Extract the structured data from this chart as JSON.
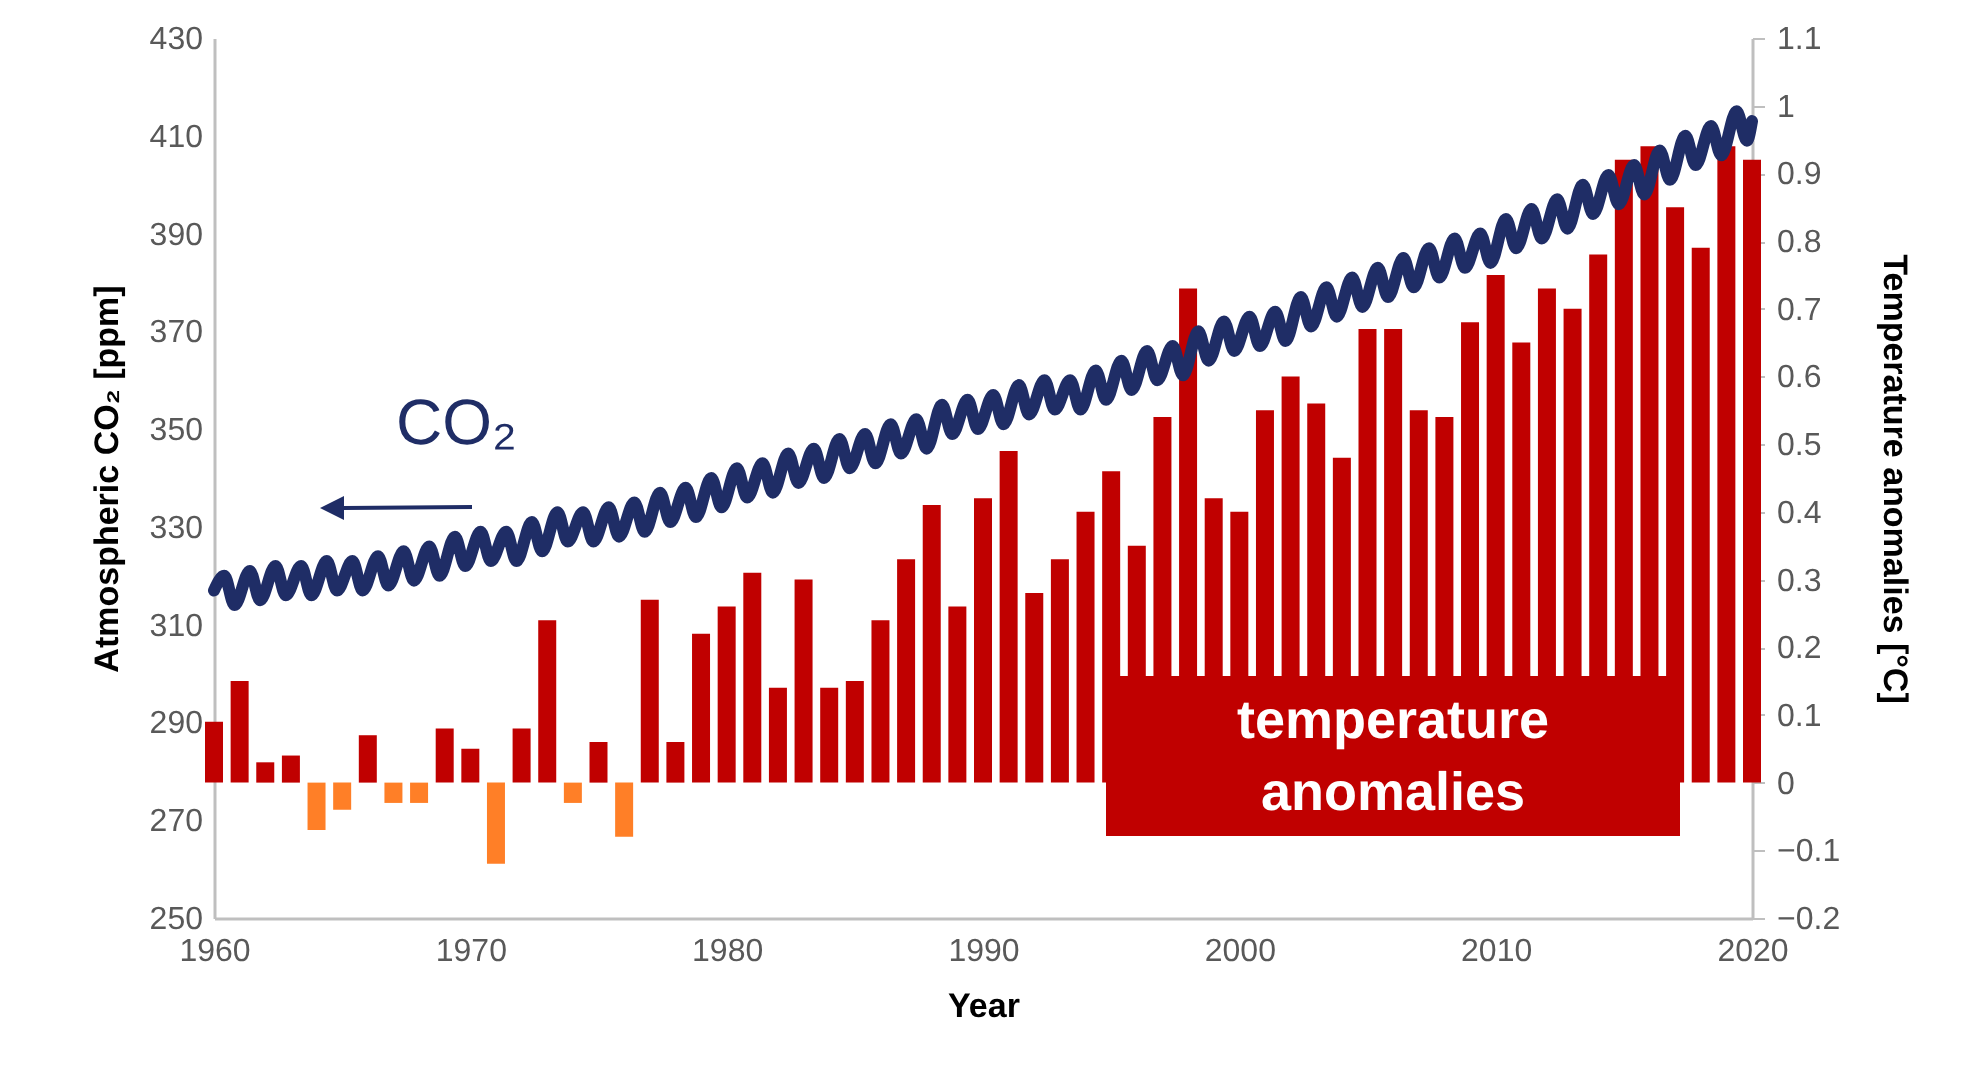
{
  "chart_data": {
    "type": "bar",
    "xlabel": "Year",
    "ylabel": "Atmospheric CO₂ [ppm]",
    "y2label": "Temperature anomalies [°C]",
    "xlim": [
      1960,
      2020
    ],
    "xticks": [
      1960,
      1970,
      1980,
      1990,
      2000,
      2010,
      2020
    ],
    "ylim": [
      250,
      430
    ],
    "yticks": [
      250,
      270,
      290,
      310,
      330,
      350,
      370,
      390,
      410,
      430
    ],
    "y2lim": [
      -0.2,
      1.1
    ],
    "y2ticks": [
      -0.2,
      -0.1,
      0,
      0.1,
      0.2,
      0.3,
      0.4,
      0.5,
      0.6,
      0.7,
      0.8,
      0.9,
      1,
      1.1
    ],
    "grid": false,
    "legend": "bottom right",
    "marker": "none",
    "series": [
      {
        "name": "temperature anomalies",
        "axis": "y2",
        "color": "#c00000",
        "x": [
          1960,
          1961,
          1962,
          1963,
          1964,
          1965,
          1966,
          1967,
          1968,
          1969,
          1970,
          1971,
          1972,
          1973,
          1974,
          1975,
          1976,
          1977,
          1978,
          1979,
          1980,
          1981,
          1982,
          1983,
          1984,
          1985,
          1986,
          1987,
          1988,
          1989,
          1990,
          1991,
          1992,
          1993,
          1994,
          1995,
          1996,
          1997,
          1998,
          1999,
          2000,
          2001,
          2002,
          2003,
          2004,
          2005,
          2006,
          2007,
          2008,
          2009,
          2010,
          2011,
          2012,
          2013,
          2014,
          2015,
          2016,
          2017,
          2018,
          2019,
          2020
        ],
        "values": [
          0.09,
          0.15,
          0.03,
          0.04,
          -0.07,
          -0.04,
          0.07,
          -0.03,
          -0.03,
          0.08,
          0.05,
          -0.12,
          0.08,
          0.24,
          -0.03,
          0.06,
          -0.08,
          0.27,
          0.06,
          0.22,
          0.26,
          0.31,
          0.14,
          0.3,
          0.14,
          0.15,
          0.24,
          0.33,
          0.41,
          0.26,
          0.42,
          0.49,
          0.28,
          0.33,
          0.4,
          0.46,
          0.35,
          0.54,
          0.73,
          0.42,
          0.4,
          0.55,
          0.6,
          0.56,
          0.48,
          0.67,
          0.67,
          0.55,
          0.54,
          0.68,
          0.75,
          0.65,
          0.73,
          0.7,
          0.78,
          0.92,
          0.94,
          0.85,
          0.79,
          0.94,
          0.92
        ],
        "colors": [
          "#c00000",
          "#c00000",
          "#c00000",
          "#c00000",
          "#ff7f27",
          "#ff7f27",
          "#c00000",
          "#ff7f27",
          "#ff7f27",
          "#c00000",
          "#c00000",
          "#ff7f27",
          "#c00000",
          "#c00000",
          "#ff7f27",
          "#c00000",
          "#ff7f27",
          "#c00000",
          "#c00000",
          "#c00000",
          "#c00000",
          "#c00000",
          "#c00000",
          "#c00000",
          "#c00000",
          "#c00000",
          "#c00000",
          "#c00000",
          "#c00000",
          "#c00000",
          "#c00000",
          "#c00000",
          "#c00000",
          "#c00000",
          "#c00000",
          "#c00000",
          "#c00000",
          "#c00000",
          "#c00000",
          "#c00000",
          "#c00000",
          "#c00000",
          "#c00000",
          "#c00000",
          "#c00000",
          "#c00000",
          "#c00000",
          "#c00000",
          "#c00000",
          "#c00000",
          "#c00000",
          "#c00000",
          "#c00000",
          "#c00000",
          "#c00000",
          "#c00000",
          "#c00000",
          "#c00000",
          "#c00000",
          "#c00000",
          "#c00000"
        ]
      },
      {
        "name": "CO₂",
        "type": "line",
        "color": "#1f2d66",
        "x": [
          1960.0,
          1960.4,
          1960.8,
          1961.4,
          1961.8,
          1962.4,
          1962.8,
          1963.4,
          1963.8,
          1964.4,
          1964.8,
          1965.4,
          1965.8,
          1966.4,
          1966.8,
          1967.4,
          1967.8,
          1968.4,
          1968.8,
          1969.4,
          1969.8,
          1970.4,
          1970.8,
          1971.4,
          1971.8,
          1972.4,
          1972.8,
          1973.4,
          1973.8,
          1974.4,
          1974.8,
          1975.4,
          1975.8,
          1976.4,
          1976.8,
          1977.4,
          1977.8,
          1978.4,
          1978.8,
          1979.4,
          1979.8,
          1980.4,
          1980.8,
          1981.4,
          1981.8,
          1982.4,
          1982.8,
          1983.4,
          1983.8,
          1984.4,
          1984.8,
          1985.4,
          1985.8,
          1986.4,
          1986.8,
          1987.4,
          1987.8,
          1988.4,
          1988.8,
          1989.4,
          1989.8,
          1990.4,
          1990.8,
          1991.4,
          1991.8,
          1992.4,
          1992.8,
          1993.4,
          1993.8,
          1994.4,
          1994.8,
          1995.4,
          1995.8,
          1996.4,
          1996.8,
          1997.4,
          1997.8,
          1998.4,
          1998.8,
          1999.4,
          1999.8,
          2000.4,
          2000.8,
          2001.4,
          2001.8,
          2002.4,
          2002.8,
          2003.4,
          2003.8,
          2004.4,
          2004.8,
          2005.4,
          2005.8,
          2006.4,
          2006.8,
          2007.4,
          2007.8,
          2008.4,
          2008.8,
          2009.4,
          2009.8,
          2010.4,
          2010.8,
          2011.4,
          2011.8,
          2012.4,
          2012.8,
          2013.4,
          2013.8,
          2014.4,
          2014.8,
          2015.4,
          2015.8,
          2016.4,
          2016.8,
          2017.4,
          2017.8,
          2018.4,
          2018.8,
          2019.4,
          2019.8,
          2020.0
        ],
        "values": [
          317,
          320,
          314,
          321,
          315,
          322,
          316,
          322,
          316,
          323,
          317,
          323,
          317,
          324,
          318,
          325,
          319,
          326,
          320,
          328,
          322,
          329,
          323,
          329,
          323,
          331,
          325,
          333,
          327,
          333,
          327,
          334,
          328,
          335,
          329,
          337,
          331,
          338,
          332,
          340,
          334,
          342,
          336,
          343,
          337,
          345,
          339,
          346,
          340,
          348,
          342,
          349,
          343,
          351,
          345,
          352,
          346,
          355,
          349,
          356,
          350,
          357,
          351,
          359,
          353,
          360,
          354,
          360,
          354,
          362,
          356,
          364,
          358,
          366,
          360,
          367,
          361,
          370,
          364,
          372,
          366,
          373,
          367,
          374,
          368,
          377,
          371,
          379,
          373,
          381,
          375,
          383,
          377,
          385,
          379,
          387,
          381,
          389,
          383,
          390,
          384,
          393,
          387,
          395,
          389,
          397,
          391,
          400,
          394,
          402,
          396,
          404,
          398,
          407,
          401,
          410,
          404,
          412,
          406,
          415,
          409,
          413
        ]
      }
    ]
  }
}
